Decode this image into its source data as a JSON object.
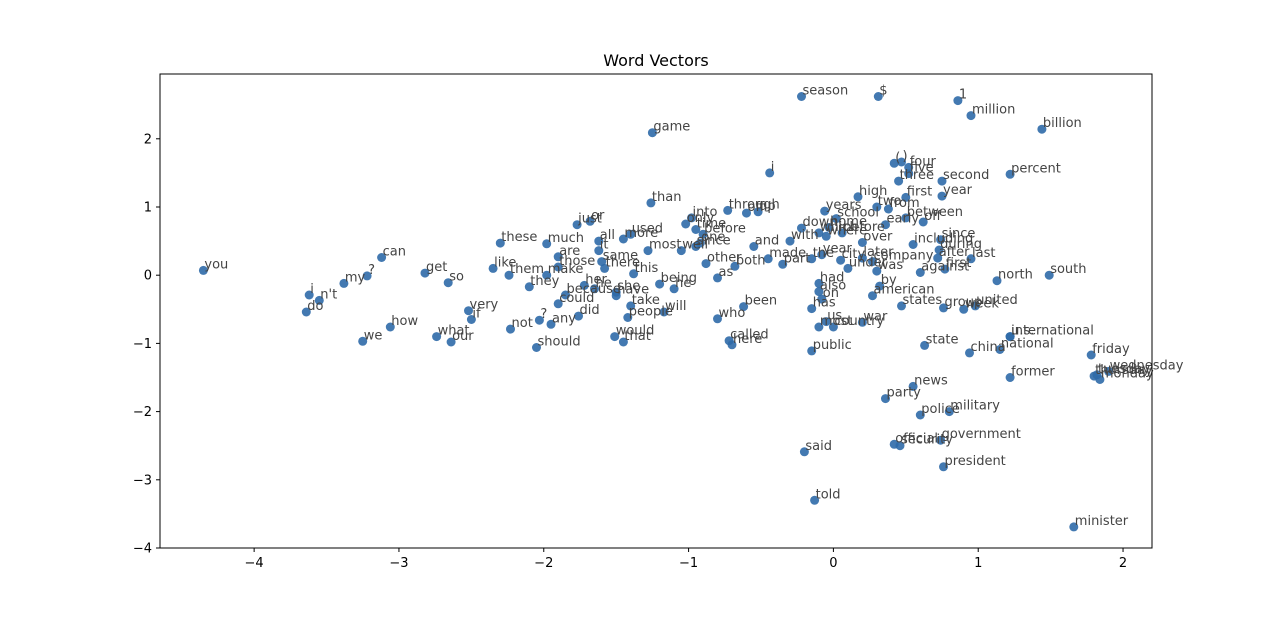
{
  "chart_data": {
    "type": "scatter",
    "title": "Word Vectors",
    "xlabel": "",
    "ylabel": "",
    "xlim": [
      -4.65,
      2.2
    ],
    "ylim": [
      -4.0,
      2.95
    ],
    "xticks": [
      -4,
      -3,
      -2,
      -1,
      0,
      1,
      2
    ],
    "xtick_labels": [
      "−4",
      "−3",
      "−2",
      "−1",
      "0",
      "1",
      "2"
    ],
    "yticks": [
      -4,
      -3,
      -2,
      -1,
      0,
      1,
      2
    ],
    "ytick_labels": [
      "−4",
      "−3",
      "−2",
      "−1",
      "0",
      "1",
      "2"
    ],
    "grid": false,
    "points": [
      {
        "label": "you",
        "x": -4.35,
        "y": 0.07
      },
      {
        "label": "i",
        "x": -3.62,
        "y": -0.29
      },
      {
        "label": "n't",
        "x": -3.55,
        "y": -0.37
      },
      {
        "label": "do",
        "x": -3.64,
        "y": -0.54
      },
      {
        "label": "my",
        "x": -3.38,
        "y": -0.12
      },
      {
        "label": "?",
        "x": -3.22,
        "y": -0.01
      },
      {
        "label": "can",
        "x": -3.12,
        "y": 0.26
      },
      {
        "label": "we",
        "x": -3.25,
        "y": -0.97
      },
      {
        "label": "how",
        "x": -3.06,
        "y": -0.76
      },
      {
        "label": "get",
        "x": -2.82,
        "y": 0.03
      },
      {
        "label": "so",
        "x": -2.66,
        "y": -0.11
      },
      {
        "label": "what",
        "x": -2.74,
        "y": -0.9
      },
      {
        "label": "our",
        "x": -2.64,
        "y": -0.98
      },
      {
        "label": "like",
        "x": -2.35,
        "y": 0.1
      },
      {
        "label": "these",
        "x": -2.3,
        "y": 0.47
      },
      {
        "label": "very",
        "x": -2.52,
        "y": -0.52
      },
      {
        "label": "if",
        "x": -2.5,
        "y": -0.65
      },
      {
        "label": "not",
        "x": -2.23,
        "y": -0.79
      },
      {
        "label": "them",
        "x": -2.24,
        "y": 0.0
      },
      {
        "label": "they",
        "x": -2.1,
        "y": -0.17
      },
      {
        "label": "make",
        "x": -1.98,
        "y": 0.0
      },
      {
        "label": "much",
        "x": -1.98,
        "y": 0.46
      },
      {
        "label": "are",
        "x": -1.9,
        "y": 0.27
      },
      {
        "label": "those",
        "x": -1.9,
        "y": 0.12
      },
      {
        "label": "because",
        "x": -1.85,
        "y": -0.29
      },
      {
        "label": "could",
        "x": -1.9,
        "y": -0.42
      },
      {
        "label": "did",
        "x": -1.76,
        "y": -0.6
      },
      {
        "label": "?",
        "x": -2.03,
        "y": -0.66
      },
      {
        "label": "any",
        "x": -1.95,
        "y": -0.72
      },
      {
        "label": "should",
        "x": -2.05,
        "y": -1.06
      },
      {
        "label": "just",
        "x": -1.77,
        "y": 0.74
      },
      {
        "label": "or",
        "x": -1.68,
        "y": 0.79
      },
      {
        "label": "all",
        "x": -1.62,
        "y": 0.5
      },
      {
        "label": "it",
        "x": -1.62,
        "y": 0.36
      },
      {
        "label": "her",
        "x": -1.72,
        "y": -0.15
      },
      {
        "label": "same",
        "x": -1.6,
        "y": 0.2
      },
      {
        "label": "there",
        "x": -1.58,
        "y": 0.1
      },
      {
        "label": "he",
        "x": -1.65,
        "y": -0.2
      },
      {
        "label": "more",
        "x": -1.45,
        "y": 0.53
      },
      {
        "label": "used",
        "x": -1.4,
        "y": 0.6
      },
      {
        "label": "this",
        "x": -1.38,
        "y": 0.02
      },
      {
        "label": "she",
        "x": -1.5,
        "y": -0.25
      },
      {
        "label": "take",
        "x": -1.4,
        "y": -0.45
      },
      {
        "label": "have",
        "x": -1.5,
        "y": -0.3
      },
      {
        "label": "people",
        "x": -1.42,
        "y": -0.62
      },
      {
        "label": "would",
        "x": -1.51,
        "y": -0.9
      },
      {
        "label": "that",
        "x": -1.45,
        "y": -0.98
      },
      {
        "label": "than",
        "x": -1.26,
        "y": 1.06
      },
      {
        "label": "game",
        "x": -1.25,
        "y": 2.09
      },
      {
        "label": "most",
        "x": -1.28,
        "y": 0.36
      },
      {
        "label": "being",
        "x": -1.2,
        "y": -0.13
      },
      {
        "label": "he",
        "x": -1.1,
        "y": -0.2
      },
      {
        "label": "will",
        "x": -1.17,
        "y": -0.54
      },
      {
        "label": "into",
        "x": -0.98,
        "y": 0.84
      },
      {
        "label": "only",
        "x": -1.02,
        "y": 0.75
      },
      {
        "label": "time",
        "x": -0.95,
        "y": 0.67
      },
      {
        "label": "before",
        "x": -0.9,
        "y": 0.6
      },
      {
        "label": "well",
        "x": -1.05,
        "y": 0.36
      },
      {
        "label": "since",
        "x": -0.95,
        "y": 0.42
      },
      {
        "label": "one",
        "x": -0.92,
        "y": 0.47
      },
      {
        "label": "other",
        "x": -0.88,
        "y": 0.17
      },
      {
        "label": "as",
        "x": -0.8,
        "y": -0.04
      },
      {
        "label": "who",
        "x": -0.8,
        "y": -0.64
      },
      {
        "label": "through",
        "x": -0.73,
        "y": 0.95
      },
      {
        "label": "off",
        "x": -0.6,
        "y": 0.91
      },
      {
        "label": "up",
        "x": -0.52,
        "y": 0.93
      },
      {
        "label": "both",
        "x": -0.68,
        "y": 0.13
      },
      {
        "label": "been",
        "x": -0.62,
        "y": -0.46
      },
      {
        "label": "called",
        "x": -0.72,
        "y": -0.96
      },
      {
        "label": "here",
        "x": -0.7,
        "y": -1.02
      },
      {
        "label": "and",
        "x": -0.55,
        "y": 0.42
      },
      {
        "label": "made",
        "x": -0.45,
        "y": 0.24
      },
      {
        "label": "part",
        "x": -0.35,
        "y": 0.16
      },
      {
        "label": "i",
        "x": -0.44,
        "y": 1.5
      },
      {
        "label": "season",
        "x": -0.22,
        "y": 2.62
      },
      {
        "label": "down",
        "x": -0.22,
        "y": 0.69
      },
      {
        "label": "with",
        "x": -0.3,
        "y": 0.5
      },
      {
        "label": "which",
        "x": -0.1,
        "y": 0.62
      },
      {
        "label": "where",
        "x": -0.05,
        "y": 0.57
      },
      {
        "label": "years",
        "x": -0.06,
        "y": 0.94
      },
      {
        "label": "school",
        "x": 0.02,
        "y": 0.83
      },
      {
        "label": "home",
        "x": -0.03,
        "y": 0.7
      },
      {
        "label": "before",
        "x": 0.06,
        "y": 0.62
      },
      {
        "label": "over",
        "x": 0.2,
        "y": 0.48
      },
      {
        "label": "year",
        "x": -0.08,
        "y": 0.3
      },
      {
        "label": "the",
        "x": -0.15,
        "y": 0.24
      },
      {
        "label": "city",
        "x": 0.05,
        "y": 0.22
      },
      {
        "label": "had",
        "x": -0.1,
        "y": -0.12
      },
      {
        "label": "also",
        "x": -0.1,
        "y": -0.24
      },
      {
        "label": "on",
        "x": -0.08,
        "y": -0.35
      },
      {
        "label": "has",
        "x": -0.15,
        "y": -0.49
      },
      {
        "label": "us",
        "x": -0.05,
        "y": -0.68
      },
      {
        "label": "most",
        "x": -0.1,
        "y": -0.76
      },
      {
        "label": "war",
        "x": 0.2,
        "y": -0.69
      },
      {
        "label": "country",
        "x": 0.0,
        "y": -0.76
      },
      {
        "label": "public",
        "x": -0.15,
        "y": -1.11
      },
      {
        "label": "said",
        "x": -0.2,
        "y": -2.59
      },
      {
        "label": "told",
        "x": -0.13,
        "y": -3.3
      },
      {
        "label": "$",
        "x": 0.31,
        "y": 2.62
      },
      {
        "label": "high",
        "x": 0.17,
        "y": 1.15
      },
      {
        "label": "two",
        "x": 0.3,
        "y": 1.0
      },
      {
        "label": "from",
        "x": 0.38,
        "y": 0.97
      },
      {
        "label": "early",
        "x": 0.36,
        "y": 0.74
      },
      {
        "label": "later",
        "x": 0.2,
        "y": 0.25
      },
      {
        "label": "company",
        "x": 0.27,
        "y": 0.2
      },
      {
        "label": "under",
        "x": 0.1,
        "y": 0.1
      },
      {
        "label": "was",
        "x": 0.3,
        "y": 0.06
      },
      {
        "label": "by",
        "x": 0.32,
        "y": -0.16
      },
      {
        "label": "american",
        "x": 0.27,
        "y": -0.3
      },
      {
        "label": "states",
        "x": 0.47,
        "y": -0.45
      },
      {
        "label": "(",
        "x": 0.42,
        "y": 1.64
      },
      {
        "label": ")",
        "x": 0.47,
        "y": 1.66
      },
      {
        "label": "four",
        "x": 0.52,
        "y": 1.58
      },
      {
        "label": "five",
        "x": 0.52,
        "y": 1.49
      },
      {
        "label": "three",
        "x": 0.45,
        "y": 1.38
      },
      {
        "label": "second",
        "x": 0.75,
        "y": 1.38
      },
      {
        "label": "first",
        "x": 0.5,
        "y": 1.14
      },
      {
        "label": "year",
        "x": 0.75,
        "y": 1.16
      },
      {
        "label": "between",
        "x": 0.5,
        "y": 0.84
      },
      {
        "label": "off",
        "x": 0.62,
        "y": 0.78
      },
      {
        "label": "including",
        "x": 0.55,
        "y": 0.45
      },
      {
        "label": "since",
        "x": 0.74,
        "y": 0.52
      },
      {
        "label": "during",
        "x": 0.73,
        "y": 0.37
      },
      {
        "label": "after",
        "x": 0.72,
        "y": 0.25
      },
      {
        "label": "last",
        "x": 0.95,
        "y": 0.24
      },
      {
        "label": "first",
        "x": 0.77,
        "y": 0.09
      },
      {
        "label": "against",
        "x": 0.6,
        "y": 0.04
      },
      {
        "label": "group",
        "x": 0.76,
        "y": -0.48
      },
      {
        "label": "week",
        "x": 0.9,
        "y": -0.5
      },
      {
        "label": "united",
        "x": 0.98,
        "y": -0.45
      },
      {
        "label": "state",
        "x": 0.63,
        "y": -1.03
      },
      {
        "label": "news",
        "x": 0.55,
        "y": -1.63
      },
      {
        "label": "party",
        "x": 0.36,
        "y": -1.81
      },
      {
        "label": "police",
        "x": 0.6,
        "y": -2.05
      },
      {
        "label": "military",
        "x": 0.8,
        "y": -2.0
      },
      {
        "label": "official",
        "x": 0.42,
        "y": -2.48
      },
      {
        "label": "security",
        "x": 0.46,
        "y": -2.5
      },
      {
        "label": "government",
        "x": 0.74,
        "y": -2.42
      },
      {
        "label": "president",
        "x": 0.76,
        "y": -2.81
      },
      {
        "label": "1",
        "x": 0.86,
        "y": 2.56
      },
      {
        "label": "million",
        "x": 0.95,
        "y": 2.34
      },
      {
        "label": "billion",
        "x": 1.44,
        "y": 2.14
      },
      {
        "label": "percent",
        "x": 1.22,
        "y": 1.48
      },
      {
        "label": "north",
        "x": 1.13,
        "y": -0.08
      },
      {
        "label": "south",
        "x": 1.49,
        "y": 0.0
      },
      {
        "label": "china",
        "x": 0.94,
        "y": -1.14
      },
      {
        "label": "national",
        "x": 1.15,
        "y": -1.09
      },
      {
        "label": "u.s.",
        "x": 1.22,
        "y": -0.9
      },
      {
        "label": "international",
        "x": 1.22,
        "y": -0.9
      },
      {
        "label": "former",
        "x": 1.22,
        "y": -1.5
      },
      {
        "label": "friday",
        "x": 1.78,
        "y": -1.17
      },
      {
        "label": "wednesday",
        "x": 1.9,
        "y": -1.41
      },
      {
        "label": "thursday",
        "x": 1.8,
        "y": -1.48
      },
      {
        "label": "tuesday",
        "x": 1.82,
        "y": -1.46
      },
      {
        "label": "monday",
        "x": 1.84,
        "y": -1.53
      },
      {
        "label": "minister",
        "x": 1.66,
        "y": -3.69
      }
    ]
  }
}
